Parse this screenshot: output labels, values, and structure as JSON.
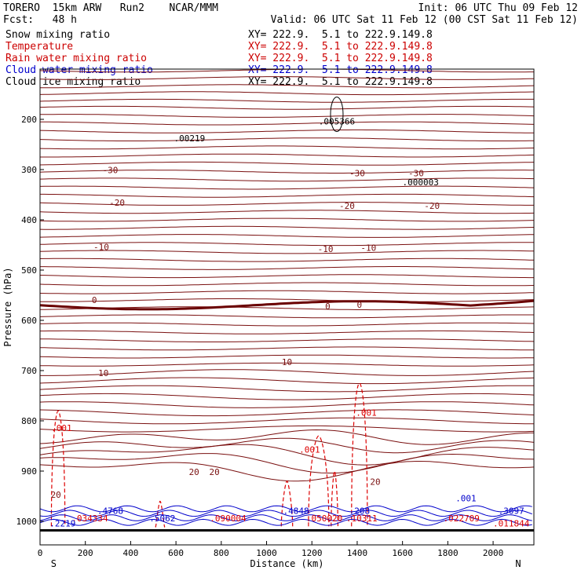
{
  "header": {
    "model": "TORERO  15km ARW   Run2    NCAR/MMM",
    "init": "Init: 06 UTC Thu 09 Feb 12",
    "fcst": "Fcst:   48 h",
    "valid": "Valid: 06 UTC Sat 11 Feb 12 (00 CST Sat 11 Feb 12)"
  },
  "legend": [
    {
      "label": "Snow mixing ratio",
      "color": "#000000",
      "xy": "XY= 222.9.  5.1 to 222.9.149.8"
    },
    {
      "label": "Temperature",
      "color": "#cc0000",
      "xy": "XY= 222.9.  5.1 to 222.9.149.8"
    },
    {
      "label": "Rain water mixing ratio",
      "color": "#cc0000",
      "xy": "XY= 222.9.  5.1 to 222.9.149.8"
    },
    {
      "label": "Cloud water mixing ratio",
      "color": "#0000cc",
      "xy": "XY= 222.9.  5.1 to 222.9.149.8"
    },
    {
      "label": "Cloud ice mixing ratio",
      "color": "#000000",
      "xy": "XY= 222.9.  5.1 to 222.9.149.8"
    }
  ],
  "colors": {
    "temperature": "#7a1010",
    "zero_isotherm": "#6a0000",
    "rain": "#dd0000",
    "cloud_water": "#0000cc",
    "ice": "#000000"
  },
  "chart_data": {
    "type": "cross-section contour",
    "xlabel": "Distance (km)",
    "ylabel": "Pressure (hPa)",
    "xlim": [
      0,
      2180
    ],
    "ylim": [
      1050,
      100
    ],
    "x_ticks": [
      "0",
      "200",
      "400",
      "600",
      "800",
      "1000",
      "1200",
      "1400",
      "1600",
      "1800",
      "2000"
    ],
    "x_tick_values": [
      0,
      200,
      400,
      600,
      800,
      1000,
      1200,
      1400,
      1600,
      1800,
      2000
    ],
    "y_ticks": [
      "200",
      "300",
      "400",
      "500",
      "600",
      "700",
      "800",
      "900",
      "1000"
    ],
    "y_tick_values": [
      200,
      300,
      400,
      500,
      600,
      700,
      800,
      900,
      1000
    ],
    "endpoint_left": "S",
    "endpoint_right": "N",
    "temperature_labels": [
      {
        "text": "-30",
        "x": 310,
        "p": 307
      },
      {
        "text": "-30",
        "x": 1400,
        "p": 313
      },
      {
        "text": "-30",
        "x": 1660,
        "p": 313
      },
      {
        "text": "-20",
        "x": 340,
        "p": 372
      },
      {
        "text": "-20",
        "x": 1355,
        "p": 378
      },
      {
        "text": "-20",
        "x": 1730,
        "p": 378
      },
      {
        "text": "-10",
        "x": 270,
        "p": 460
      },
      {
        "text": "-10",
        "x": 1260,
        "p": 464
      },
      {
        "text": "-10",
        "x": 1450,
        "p": 462
      },
      {
        "text": "0",
        "x": 240,
        "p": 566
      },
      {
        "text": "0",
        "x": 1270,
        "p": 578
      },
      {
        "text": "0",
        "x": 1410,
        "p": 575
      },
      {
        "text": "10",
        "x": 1090,
        "p": 689
      },
      {
        "text": "10",
        "x": 280,
        "p": 711
      },
      {
        "text": "20",
        "x": 680,
        "p": 908
      },
      {
        "text": "20",
        "x": 770,
        "p": 908
      },
      {
        "text": "20",
        "x": 1480,
        "p": 927
      },
      {
        "text": "20",
        "x": 70,
        "p": 953
      }
    ],
    "rain_labels": [
      {
        "text": ".001",
        "x": 95,
        "p": 820
      },
      {
        "text": ".001",
        "x": 1190,
        "p": 863
      },
      {
        "text": ".001",
        "x": 1440,
        "p": 790
      },
      {
        "text": ".034334",
        "x": 220,
        "p": 1000
      },
      {
        "text": ".090004",
        "x": 830,
        "p": 1000
      },
      {
        "text": ".050020",
        "x": 1255,
        "p": 1000
      },
      {
        "text": ".10311",
        "x": 1420,
        "p": 1000
      },
      {
        "text": ".022709",
        "x": 1860,
        "p": 1000
      },
      {
        "text": ".011844",
        "x": 2080,
        "p": 1010
      }
    ],
    "cloud_water_labels": [
      {
        "text": ".2219",
        "x": 100,
        "p": 1010
      },
      {
        "text": ".4768",
        "x": 310,
        "p": 985
      },
      {
        "text": ".5062",
        "x": 540,
        "p": 1000
      },
      {
        "text": ".4848",
        "x": 1130,
        "p": 985
      },
      {
        "text": ".208",
        "x": 1410,
        "p": 985
      },
      {
        "text": ".001",
        "x": 1880,
        "p": 960
      },
      {
        "text": ".3097",
        "x": 2080,
        "p": 985
      }
    ],
    "ice_labels": [
      {
        "text": ".00219",
        "x": 660,
        "p": 244
      },
      {
        "text": ".005366",
        "x": 1310,
        "p": 210
      },
      {
        "text": ".000003",
        "x": 1680,
        "p": 331
      }
    ]
  }
}
